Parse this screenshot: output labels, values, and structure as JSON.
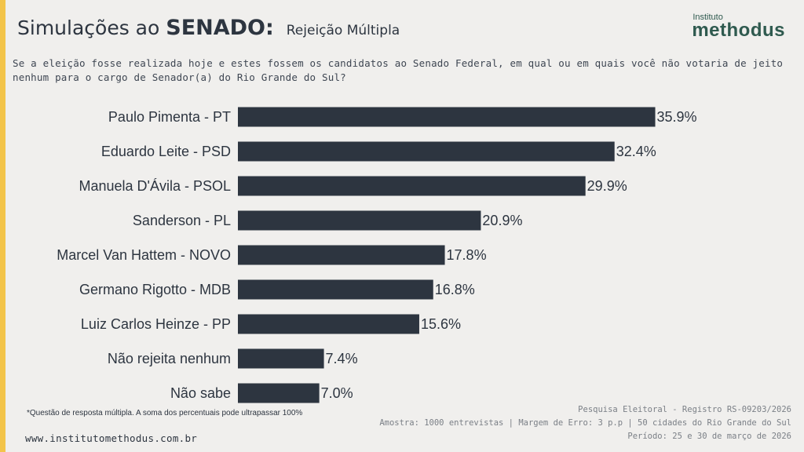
{
  "header": {
    "title_prefix": "Simulações ao",
    "title_bold": "SENADO:",
    "subtitle": "Rejeição Múltipla"
  },
  "logo": {
    "small": "Instituto",
    "main": "methodus"
  },
  "question": "Se a eleição fosse realizada hoje e estes fossem os candidatos ao Senado Federal, em qual ou em quais você não votaria de jeito nenhum para o cargo de Senador(a) do Rio Grande do Sul?",
  "chart_data": {
    "type": "bar",
    "orientation": "horizontal",
    "categories": [
      "Paulo Pimenta - PT",
      "Eduardo Leite - PSD",
      "Manuela D'Ávila - PSOL",
      "Sanderson - PL",
      "Marcel Van Hattem - NOVO",
      "Germano Rigotto - MDB",
      "Luiz Carlos Heinze - PP",
      "Não rejeita nenhum",
      "Não sabe"
    ],
    "values": [
      35.9,
      32.4,
      29.9,
      20.9,
      17.8,
      16.8,
      15.6,
      7.4,
      7.0
    ],
    "value_labels": [
      "35.9%",
      "32.4%",
      "29.9%",
      "20.9%",
      "17.8%",
      "16.8%",
      "15.6%",
      "7.4%",
      "7.0%"
    ],
    "unit": "%",
    "xlim": [
      0,
      36
    ],
    "bar_color": "#2d3540"
  },
  "footnote": "*Questão de resposta múltipla. A soma dos percentuais pode ultrapassar 100%",
  "website": "www.institutomethodus.com.br",
  "meta": {
    "line1": "Pesquisa Eleitoral - Registro RS-09203/2026",
    "line2": "Amostra: 1000 entrevistas | Margem de Erro: 3 p.p | 50 cidades do Rio Grande do Sul",
    "line3": "Período: 25 e 30 de março de 2026"
  }
}
